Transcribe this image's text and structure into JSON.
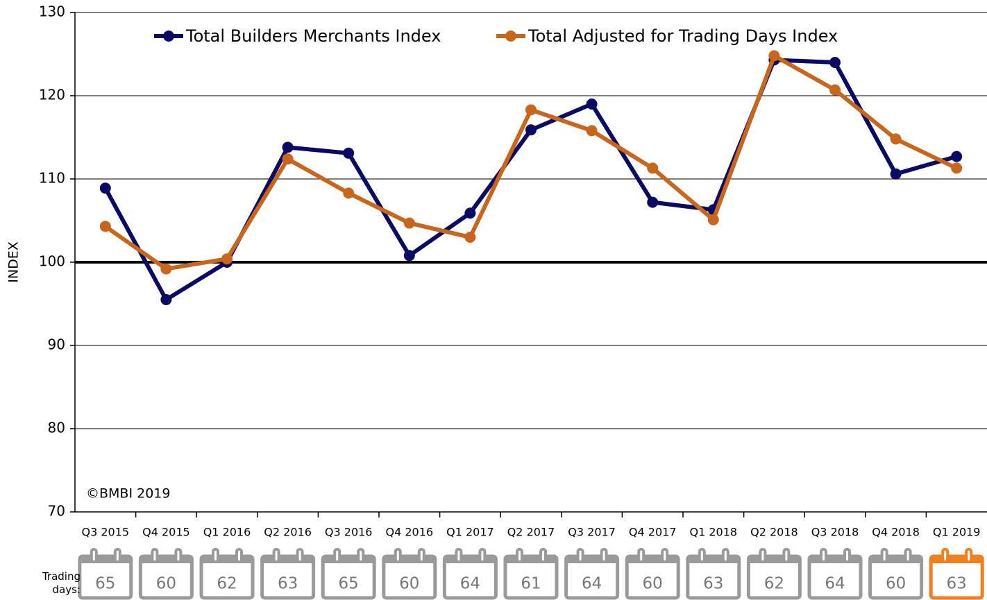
{
  "chart_data": {
    "type": "line",
    "y_label": "INDEX",
    "annotation": "©BMBI 2019",
    "categories": [
      "Q3 2015",
      "Q4 2015",
      "Q1 2016",
      "Q2 2016",
      "Q3 2016",
      "Q4 2016",
      "Q1 2017",
      "Q2 2017",
      "Q3 2017",
      "Q4 2017",
      "Q1 2018",
      "Q2 2018",
      "Q3 2018",
      "Q4 2018",
      "Q1 2019"
    ],
    "series": [
      {
        "name": "Total Builders Merchants Index",
        "color": "#0a0a64",
        "values": [
          108.9,
          95.5,
          100,
          113.8,
          113.1,
          100.8,
          105.9,
          115.9,
          119,
          107.2,
          106.3,
          124.3,
          124,
          110.6,
          112.7
        ]
      },
      {
        "name": "Total Adjusted for Trading Days Index",
        "color": "#c8661e",
        "values": [
          104.3,
          99.2,
          100.4,
          112.4,
          108.3,
          104.7,
          103,
          118.3,
          115.8,
          111.3,
          105.1,
          124.8,
          120.7,
          114.8,
          111.3
        ]
      }
    ],
    "ylim": [
      70,
      130
    ],
    "yticks": [
      70,
      80,
      90,
      100,
      110,
      120,
      130
    ],
    "grid": true,
    "reference_line": 100,
    "trading_days_label": "Trading days:",
    "trading_days": [
      65,
      60,
      62,
      63,
      65,
      60,
      64,
      61,
      64,
      60,
      63,
      62,
      64,
      60,
      63
    ],
    "trading_days_colors": [
      "#9a9a9a",
      "#9a9a9a",
      "#9a9a9a",
      "#9a9a9a",
      "#9a9a9a",
      "#9a9a9a",
      "#9a9a9a",
      "#9a9a9a",
      "#9a9a9a",
      "#9a9a9a",
      "#9a9a9a",
      "#9a9a9a",
      "#9a9a9a",
      "#9a9a9a",
      "#f07f22"
    ]
  }
}
